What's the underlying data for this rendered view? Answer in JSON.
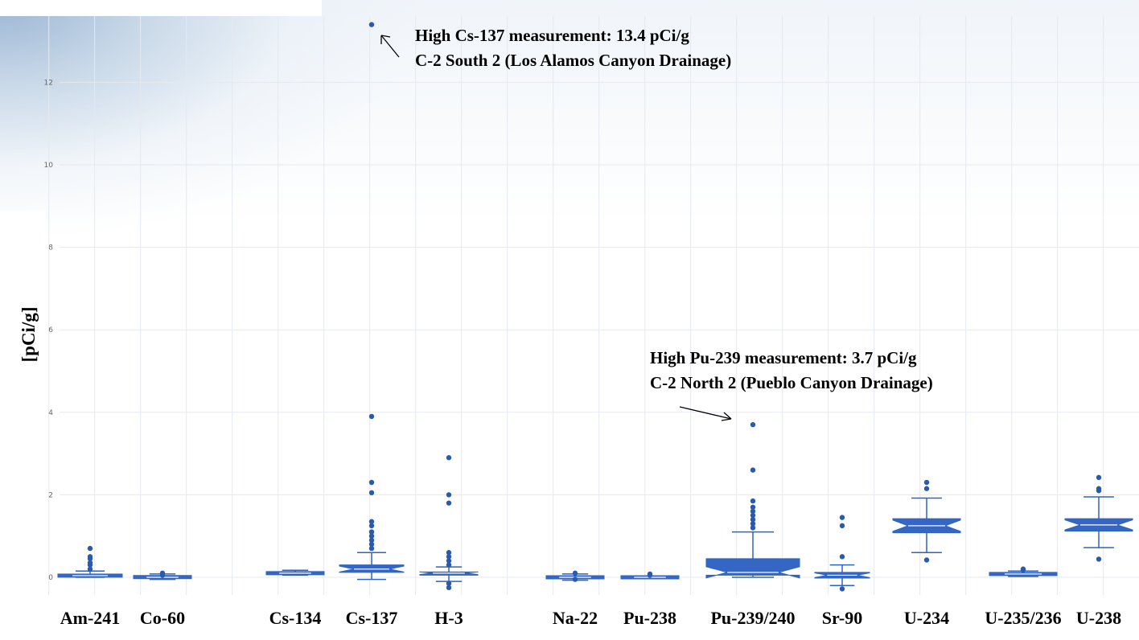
{
  "chart_data": {
    "type": "box",
    "ylabel": "[pCi/g]",
    "ylim": [
      -0.35,
      13.6
    ],
    "yticks": [
      0,
      2,
      4,
      6,
      8,
      10,
      12
    ],
    "categories": [
      "Am-241",
      "Co-60",
      "Cs-134",
      "Cs-137",
      "H-3",
      "Na-22",
      "Pu-238",
      "Pu-239/240",
      "Sr-90",
      "U-234",
      "U-235/236",
      "U-238"
    ],
    "boxes": [
      {
        "category": "Am-241",
        "whisker_low": 0.0,
        "q1": 0.02,
        "median": 0.04,
        "q3": 0.06,
        "whisker_high": 0.15,
        "outliers": [
          0.2,
          0.3,
          0.35,
          0.45,
          0.5,
          0.7
        ]
      },
      {
        "category": "Co-60",
        "whisker_low": -0.05,
        "q1": -0.01,
        "median": 0.0,
        "q3": 0.02,
        "whisker_high": 0.08,
        "outliers": [
          0.05,
          0.1
        ]
      },
      {
        "category": "Cs-134",
        "whisker_low": 0.05,
        "q1": 0.08,
        "median": 0.1,
        "q3": 0.12,
        "whisker_high": 0.17,
        "outliers": []
      },
      {
        "category": "Cs-137",
        "whisker_low": -0.05,
        "q1": 0.12,
        "median": 0.2,
        "q3": 0.3,
        "whisker_high": 0.6,
        "outliers": [
          0.7,
          0.8,
          0.9,
          1.0,
          1.1,
          1.25,
          1.35,
          2.05,
          2.3,
          3.9,
          13.4
        ]
      },
      {
        "category": "H-3",
        "whisker_low": -0.1,
        "q1": 0.05,
        "median": 0.1,
        "q3": 0.13,
        "whisker_high": 0.25,
        "outliers": [
          -0.25,
          -0.15,
          0.3,
          0.4,
          0.5,
          0.6,
          1.8,
          2.0,
          2.9
        ]
      },
      {
        "category": "Na-22",
        "whisker_low": -0.07,
        "q1": -0.02,
        "median": 0.0,
        "q3": 0.02,
        "whisker_high": 0.08,
        "outliers": [
          -0.05,
          0.1
        ]
      },
      {
        "category": "Pu-238",
        "whisker_low": -0.02,
        "q1": -0.01,
        "median": 0.0,
        "q3": 0.01,
        "whisker_high": 0.03,
        "outliers": [
          0.05,
          0.08
        ]
      },
      {
        "category": "Pu-239/240",
        "whisker_low": 0.0,
        "q1": 0.05,
        "median": 0.12,
        "q3": 0.45,
        "whisker_high": 1.1,
        "outliers": [
          1.2,
          1.3,
          1.4,
          1.5,
          1.6,
          1.7,
          1.85,
          2.6,
          3.7
        ]
      },
      {
        "category": "Sr-90",
        "whisker_low": -0.2,
        "q1": -0.02,
        "median": 0.05,
        "q3": 0.12,
        "whisker_high": 0.3,
        "outliers": [
          -0.28,
          0.5,
          1.25,
          1.45
        ]
      },
      {
        "category": "U-234",
        "whisker_low": 0.6,
        "q1": 1.08,
        "median": 1.25,
        "q3": 1.42,
        "whisker_high": 1.92,
        "outliers": [
          0.42,
          2.15,
          2.3
        ]
      },
      {
        "category": "U-235/236",
        "whisker_low": 0.02,
        "q1": 0.06,
        "median": 0.08,
        "q3": 0.1,
        "whisker_high": 0.15,
        "outliers": [
          0.18,
          0.2
        ]
      },
      {
        "category": "U-238",
        "whisker_low": 0.72,
        "q1": 1.12,
        "median": 1.27,
        "q3": 1.42,
        "whisker_high": 1.95,
        "outliers": [
          0.44,
          2.1,
          2.15,
          2.42
        ]
      }
    ],
    "annotations": [
      {
        "line1": "High Cs-137 measurement: 13.4 pCi/g",
        "line2": "C-2 South 2 (Los Alamos Canyon Drainage)"
      },
      {
        "line1": "High Pu-239 measurement: 3.7 pCi/g",
        "line2": "C-2 North 2 (Pueblo Canyon Drainage)"
      }
    ],
    "grid": true,
    "colors": {
      "box": "#2e63bf",
      "fill": "#3566c4",
      "point": "#2a5aae",
      "grid": "#e5e9ef"
    }
  }
}
